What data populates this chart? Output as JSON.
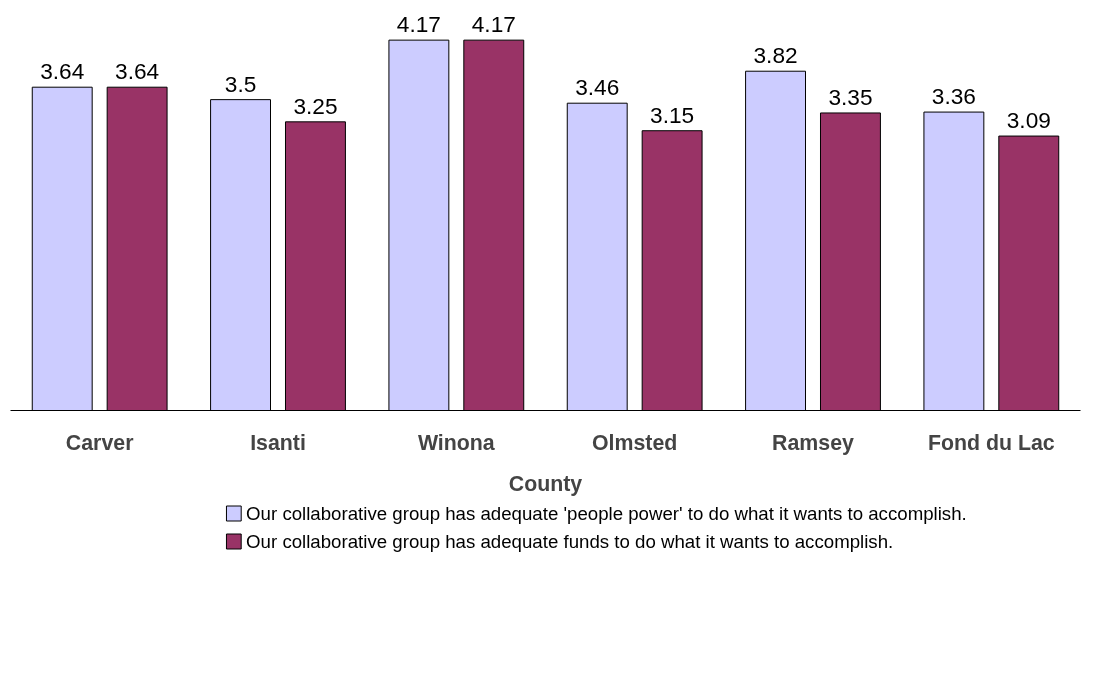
{
  "chart_data": {
    "type": "bar",
    "xlabel": "County",
    "categories": [
      "Carver",
      "Isanti",
      "Winona",
      "Olmsted",
      "Ramsey",
      "Fond du Lac"
    ],
    "series": [
      {
        "name": "Our collaborative group has adequate 'people power' to do what it wants to accomplish.",
        "color": "#ccccff",
        "values": [
          3.64,
          3.5,
          4.17,
          3.46,
          3.82,
          3.36
        ]
      },
      {
        "name": "Our collaborative group has adequate funds to do what it wants to accomplish.",
        "color": "#993366",
        "values": [
          3.64,
          3.25,
          4.17,
          3.15,
          3.35,
          3.09
        ]
      }
    ],
    "data_labels": true,
    "grid": false,
    "legend": "bottom",
    "tick_labels": "x"
  }
}
